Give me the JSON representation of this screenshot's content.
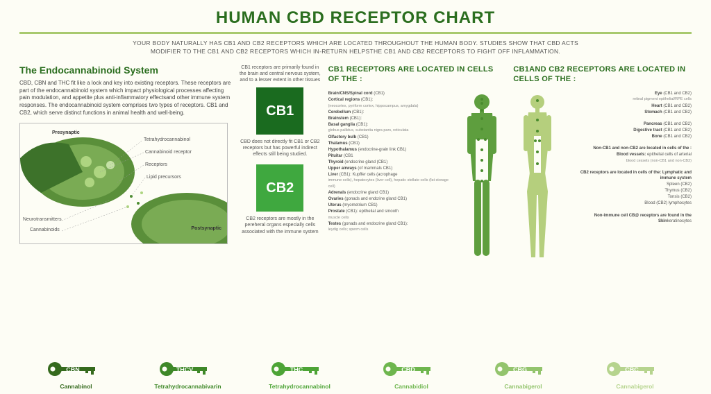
{
  "colors": {
    "title": "#2b6e1f",
    "divider": "#a8c96e",
    "text": "#555555",
    "cb1_bg": "#1a6b1f",
    "cb2_bg": "#3fa83f",
    "body_male": "#5e9e3e",
    "body_female": "#b5cf7d",
    "key_colors": [
      "#356a1d",
      "#3e8828",
      "#4da436",
      "#6eb64e",
      "#93c46d",
      "#b6d48e"
    ]
  },
  "title": "HUMAN CBD RECEPTOR CHART",
  "subtitle": "YOUR BODY NATURALLY HAS CB1 AND CB2 RECEPTORS WHICH ARE LOCATED THROUGHOUT THE HUMAN BODY. STUDIES SHOW THAT CBD ACTS MODIFIER TO THE CB1 AND CB2 RECEPTORS WHICH IN-RETURN HELPSTHE CB1 AND CB2 RECEPTORS TO FIGHT OFF INFLAMMATION.",
  "col1": {
    "heading": "The Endocannabinoid System",
    "body": "CBD, CBN and THC fit like a lock and key into existing receptors. These receptors are part of the endocannabinoid system which impact physiological processes affecting pain modulation, and appetite plus anti-inflammatory effectsand other immune system responses. The endocannabinoid system comprises two types of receptors. CB1 and CB2, which serve distinct functions in animal health and well-being.",
    "synapse_labels": {
      "presynaptic": "Presynaptic",
      "postsynaptic": "Postsynaptic",
      "tetrahydrocannabinol": "Tetrahydrocannabinol",
      "cannabinoid_receptor": "Cannabinoid receptor",
      "receptors": "Receptors",
      "lipid_precursors": "Lipid precursors",
      "neurotransmitters": "Neurotransmitters",
      "cannabinoids": "Cannabinoids"
    }
  },
  "col2": {
    "cb1_intro": "CB1 receptors are primarily found in the brain and central nervous system, and to a lesser extent in other tissues",
    "cb1_label": "CB1",
    "cb1_desc": "CBD does not directly fit CB1 or CB2 receptors but has powerful indirect effects still being studied.",
    "cb2_label": "CB2",
    "cb2_desc": "CB2 receptors are mostly in the pereheral organs especially cells associated with the immune system"
  },
  "col3": {
    "heading": "CB1 RECEPTORS ARE LOCATED IN CELLS OF THE :",
    "items": [
      {
        "b": "Brain/CNS/Spinal cord",
        "t": "(CB1)"
      },
      {
        "b": "Cortical regions",
        "t": "(CB1):",
        "s": "(neocortex, pyriform cortex, hippocampus, amygdala)"
      },
      {
        "b": "Cerebellum",
        "t": "(CB1):"
      },
      {
        "b": "Brainstem",
        "t": "(CB1):"
      },
      {
        "b": "Basal ganglia",
        "t": "(CB1):",
        "s": "globus pallidus, substantia nigra pars, reticulata"
      },
      {
        "b": "Olfactory bulb",
        "t": "(CB1)"
      },
      {
        "b": "Thalamus",
        "t": "(CB1)"
      },
      {
        "b": "Hypothalamus",
        "t": "(endocrine-grain link CB1)"
      },
      {
        "b": "Pituitar",
        "t": "(CB1"
      },
      {
        "b": "Thyroid",
        "t": "(endocrine gland (CB1)"
      },
      {
        "b": "Upper airways",
        "t": "(of mammals CB1)"
      },
      {
        "b": "Liver",
        "t": "(CB1): Kupffer cells (acrophage",
        "s": "immune cells), hepatocytes (liver cell), hepatic stellate cells (fat storage cell)"
      },
      {
        "b": "Adrenals",
        "t": "(endocrine gland CB1)"
      },
      {
        "b": "Ovaries",
        "t": "(gonads and endcrine gland CB1)"
      },
      {
        "b": "Uterus",
        "t": "(myometrium CB1)"
      },
      {
        "b": "Prostate",
        "t": "(CB1): epithelial and smooth",
        "s": "muscle cells"
      },
      {
        "b": "Testes",
        "t": "(gonads and endocrine gland CB1):",
        "s": "leydig cells; sperm cells"
      }
    ]
  },
  "col4": {
    "heading": "CB1AND CB2 RECEPTORS ARE LOCATED IN CELLS OF THE :",
    "groups": [
      [
        {
          "b": "Eye",
          "t": "(CB1 and CB2)",
          "s": "retinal pigment epithelial/RPE cells"
        },
        {
          "b": "Heart",
          "t": "(CB1 and CB2)"
        },
        {
          "b": "Stomach",
          "t": "(CB1 and CB2)"
        }
      ],
      [
        {
          "b": "Pancreas",
          "t": "(CB1 and CB2)"
        },
        {
          "b": "Digestive tract",
          "t": "(CB1 and CB2)"
        },
        {
          "b": "Bone",
          "t": "(CB1 and CB2)"
        }
      ],
      [
        {
          "h": "Non-CB1 and non-CB2 are located in cells of the :"
        },
        {
          "b": "Blood vessels:",
          "t": "epithelial cells of arterial",
          "s": "blood cessels (non-CB1 and non-CB2)"
        }
      ],
      [
        {
          "h": "CB2 receptors are located in cells of the: Lymphatic and immune system"
        },
        {
          "t": "Spleen (CB2)"
        },
        {
          "t": "Thymus (CB2)"
        },
        {
          "t": "Tonsis (CB2)"
        },
        {
          "t": "Blood (CB2) lymphocytes"
        }
      ],
      [
        {
          "h": "Non-immune cell CB@ receptors are found in the Skin",
          "t": "keratinocytes"
        }
      ]
    ]
  },
  "keys": [
    {
      "abbr": "CBN",
      "label": "Cannabinol"
    },
    {
      "abbr": "THCV",
      "label": "Tetrahydrocannabivarin"
    },
    {
      "abbr": "THC",
      "label": "Tetrahydrocannabinol"
    },
    {
      "abbr": "CBD",
      "label": "Cannabidiol"
    },
    {
      "abbr": "CBG",
      "label": "Cannabigerol"
    },
    {
      "abbr": "CBC",
      "label": "Cannabigerol"
    }
  ]
}
